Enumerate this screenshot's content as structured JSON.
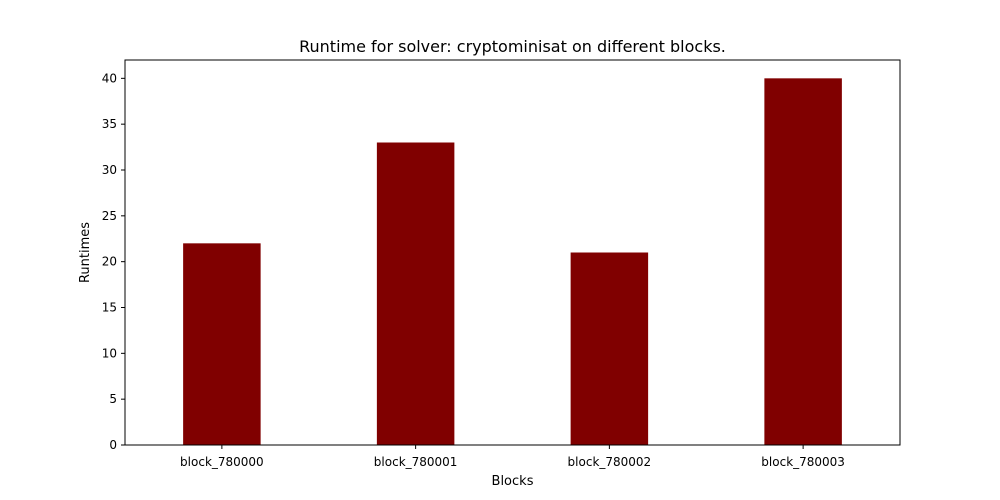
{
  "chart_data": {
    "type": "bar",
    "title": "Runtime for solver: cryptominisat on different blocks.",
    "xlabel": "Blocks",
    "ylabel": "Runtimes",
    "categories": [
      "block_780000",
      "block_780001",
      "block_780002",
      "block_780003"
    ],
    "values": [
      22,
      33,
      21,
      40
    ],
    "ylim": [
      0,
      42
    ],
    "yticks": [
      "0",
      "5",
      "10",
      "15",
      "20",
      "25",
      "30",
      "35",
      "40"
    ],
    "grid": false,
    "bar_color": "#800000"
  }
}
